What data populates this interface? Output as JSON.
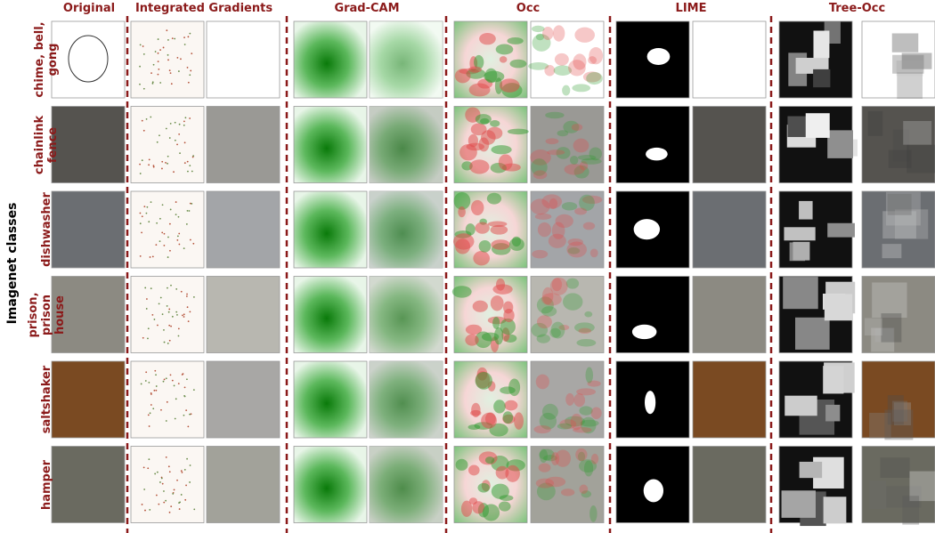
{
  "columns": [
    "Original",
    "Integrated Gradients",
    "Grad-CAM",
    "Occ",
    "LIME",
    "Tree-Occ"
  ],
  "rows": [
    "chime, bell, gong",
    "chainlink fence",
    "dishwasher",
    "prison, prison house",
    "saltshaker",
    "hamper"
  ],
  "side_label": "Imagenet classes"
}
